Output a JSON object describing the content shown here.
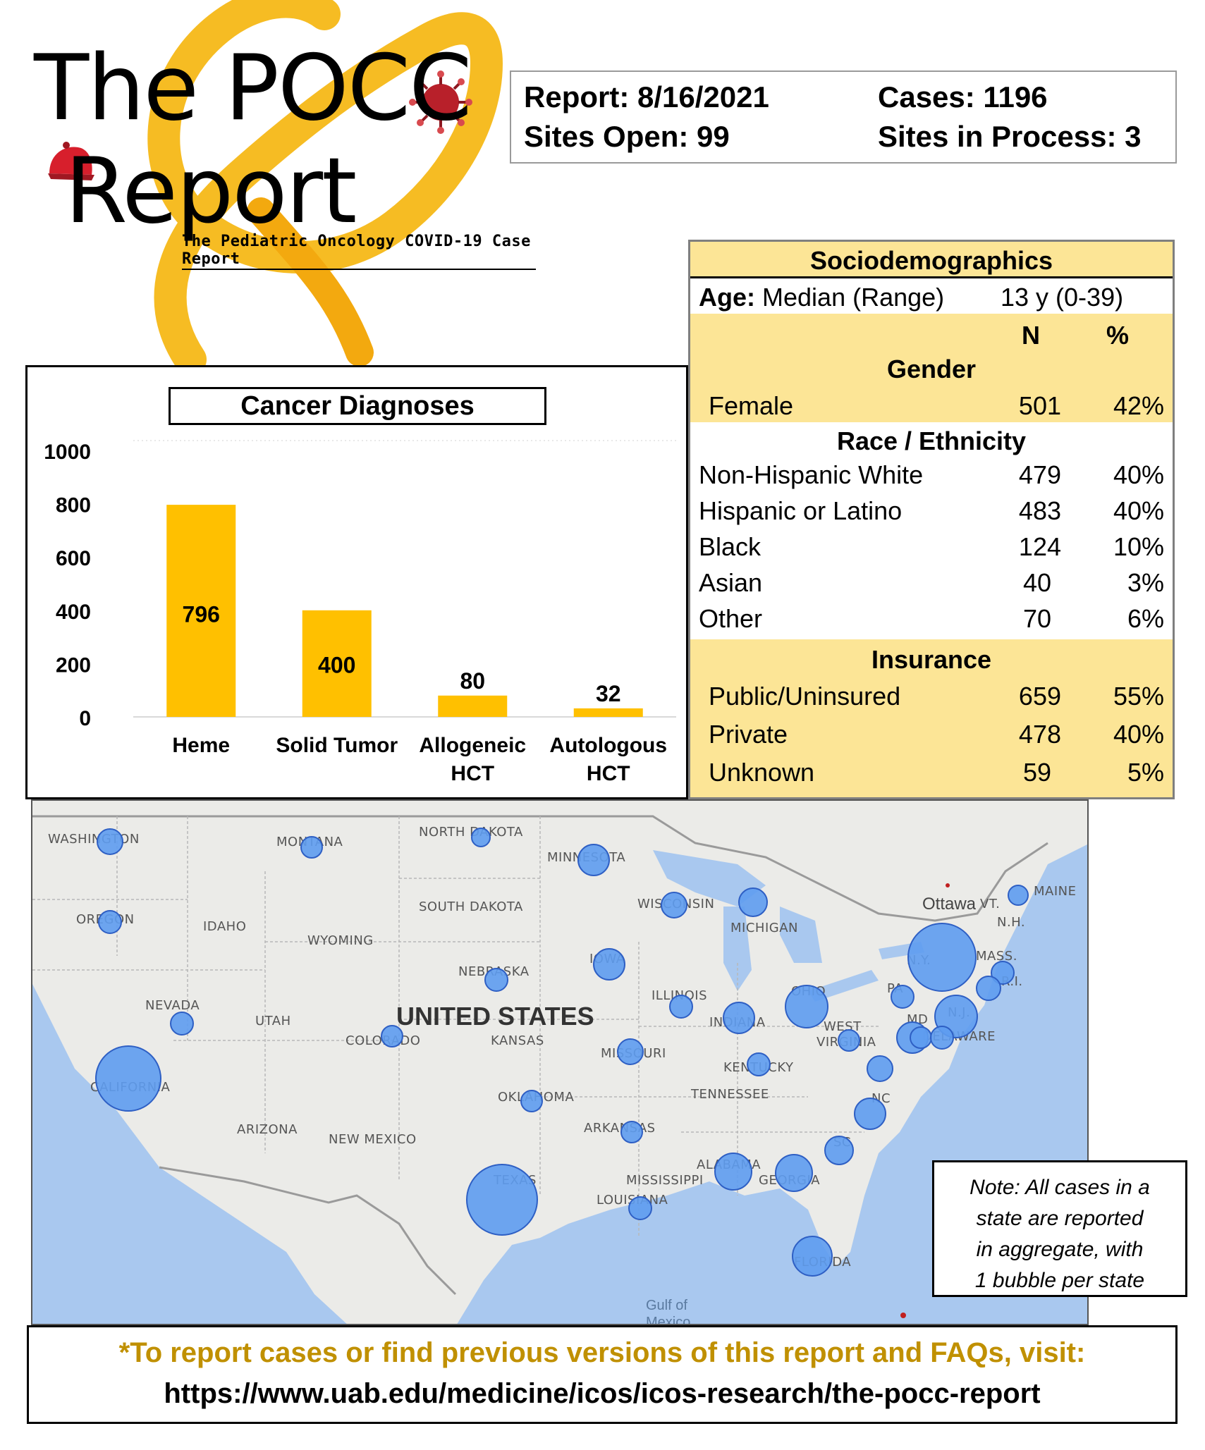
{
  "logo": {
    "line1": "The POCC",
    "line2": "Report",
    "subtitle": "The Pediatric Oncology COVID-19 Case Report",
    "colors": {
      "ribbon": "#f6b817",
      "virus": "#b8202a",
      "cap": "#d71f2c"
    }
  },
  "info": {
    "report": "Report: 8/16/2021",
    "cases": "Cases: 1196",
    "sites_open": "Sites Open: 99",
    "sites_in_process": "Sites in Process: 3"
  },
  "socio": {
    "title": "Sociodemographics",
    "age_label": "Age:",
    "age_text": "Median (Range)",
    "age_value": "13 y (0-39)",
    "n_header": "N",
    "pct_header": "%",
    "gender": {
      "heading": "Gender",
      "rows": [
        {
          "label": "Female",
          "n": "501",
          "pct": "42%"
        }
      ]
    },
    "race": {
      "heading": "Race / Ethnicity",
      "rows": [
        {
          "label": "Non-Hispanic White",
          "n": "479",
          "pct": "40%"
        },
        {
          "label": "Hispanic or Latino",
          "n": "483",
          "pct": "40%"
        },
        {
          "label": "Black",
          "n": "124",
          "pct": "10%"
        },
        {
          "label": "Asian",
          "n": "40",
          "pct": "3%"
        },
        {
          "label": "Other",
          "n": "70",
          "pct": "6%"
        }
      ]
    },
    "insurance": {
      "heading": "Insurance",
      "rows": [
        {
          "label": "Public/Uninsured",
          "n": "659",
          "pct": "55%"
        },
        {
          "label": "Private",
          "n": "478",
          "pct": "40%"
        },
        {
          "label": "Unknown",
          "n": "59",
          "pct": "5%"
        }
      ]
    },
    "colors": {
      "fill": "#fce596",
      "border": "#7f7f7f"
    }
  },
  "chart_data": {
    "type": "bar",
    "title": "Cancer Diagnoses",
    "categories": [
      "Heme",
      "Solid Tumor",
      "Allogeneic HCT",
      "Autologous HCT"
    ],
    "category_lines": [
      [
        "Heme"
      ],
      [
        "Solid Tumor"
      ],
      [
        "Allogeneic",
        "HCT"
      ],
      [
        "Autologous",
        "HCT"
      ]
    ],
    "values": [
      796,
      400,
      80,
      32
    ],
    "ylim": [
      0,
      1000
    ],
    "yticks": [
      0,
      200,
      400,
      600,
      800,
      1000
    ],
    "grid": false,
    "bar_color": "#ffc000",
    "xlabel": "",
    "ylabel": ""
  },
  "map": {
    "country": "UNITED STATES",
    "gulf": [
      "Gulf of",
      "Mexico"
    ],
    "city": "Ottawa",
    "state_labels": [
      "WASHINGTON",
      "MONTANA",
      "NORTH DAKOTA",
      "MINNESOTA",
      "SOUTH DAKOTA",
      "WISCONSIN",
      "OREGON",
      "IDAHO",
      "WYOMING",
      "MICHIGAN",
      "IOWA",
      "NEBRASKA",
      "NEVADA",
      "UTAH",
      "ILLINOIS",
      "OHIO",
      "PA",
      "COLORADO",
      "KANSAS",
      "INDIANA",
      "WEST",
      "VIRGINIA",
      "MD",
      "N.J.",
      "DELAWARE",
      "MISSOURI",
      "KENTUCKY",
      "CALIFORNIA",
      "OKLAHOMA",
      "TENNESSEE",
      "NC",
      "ARIZONA",
      "NEW MEXICO",
      "ARKANSAS",
      "SC",
      "ALABAMA",
      "GEORGIA",
      "TEXAS",
      "MISSISSIPPI",
      "LOUISIANA",
      "FLORIDA",
      "N.Y.",
      "VT.",
      "N.H.",
      "MASS.",
      "R.I.",
      "MAINE"
    ],
    "colors": {
      "water": "#a9c8ef",
      "land": "#ebebe8",
      "bubble": "#5e9cf0",
      "bubble_edge": "#2e5fc4"
    }
  },
  "note": {
    "lines": [
      "Note: All cases in a",
      "state are reported",
      "in aggregate, with",
      "1 bubble per state"
    ]
  },
  "footer": {
    "line1": "*To report cases or find previous versions of this report and FAQs, visit:",
    "line2": "https://www.uab.edu/medicine/icos/icos-research/the-pocc-report",
    "colors": {
      "line1": "#c09000"
    }
  }
}
